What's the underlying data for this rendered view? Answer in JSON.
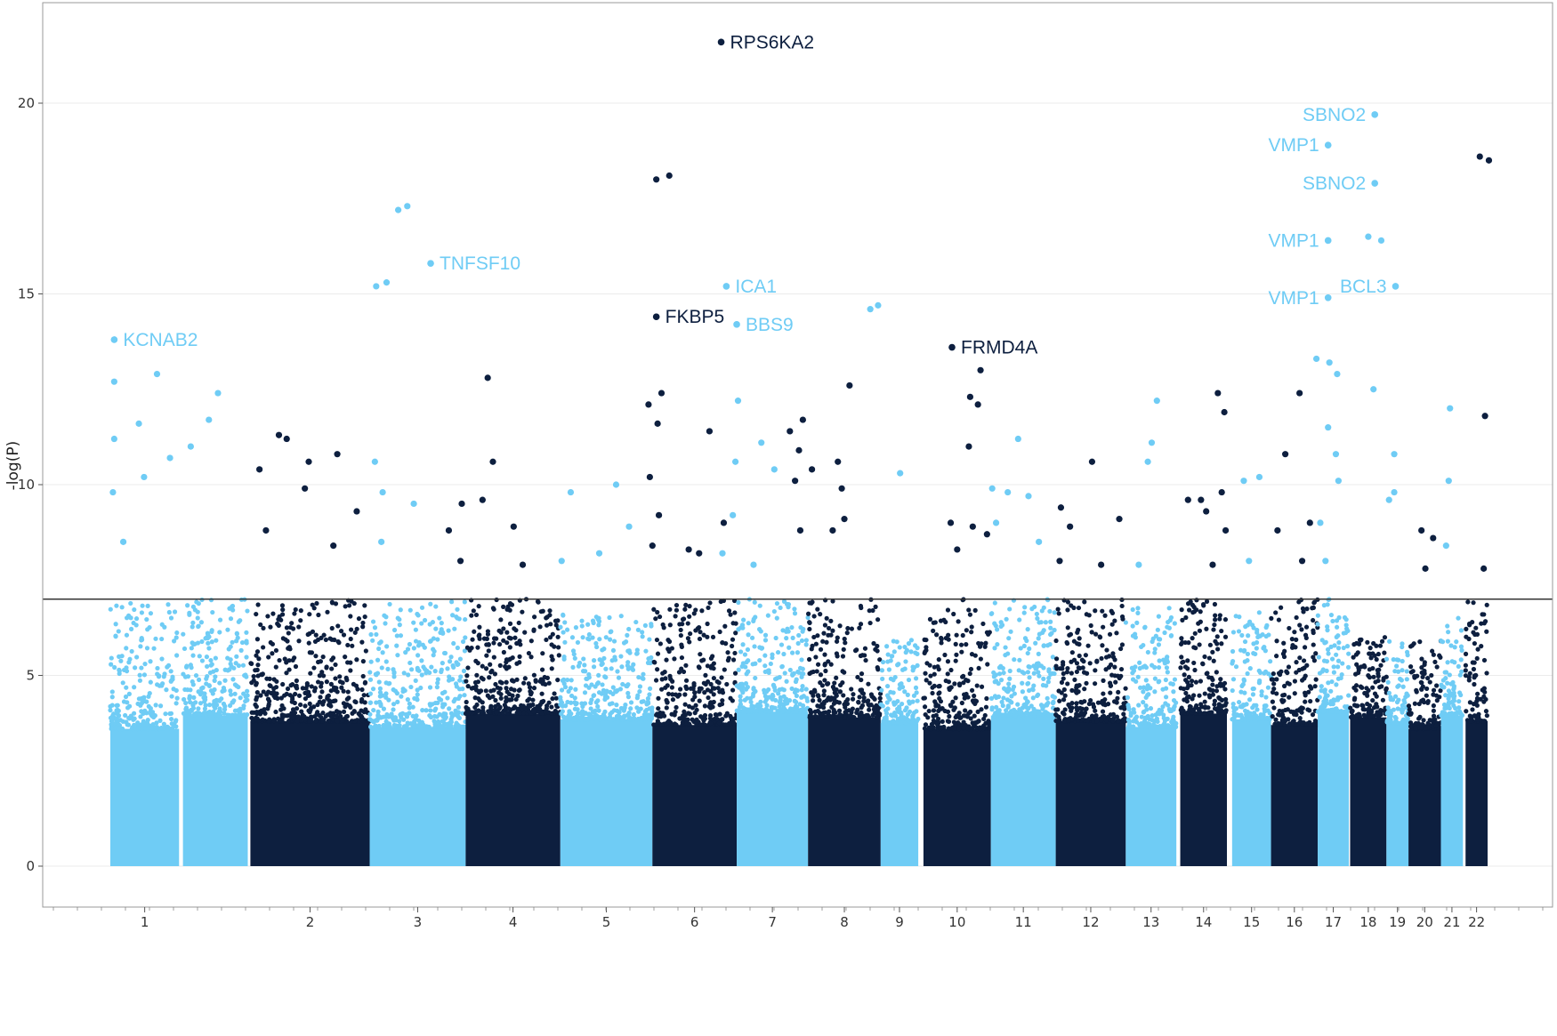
{
  "chart_data": {
    "type": "scatter",
    "subtype": "manhattan",
    "title": "",
    "xlabel": "",
    "ylabel": "-log(P)",
    "ylim": [
      0,
      22
    ],
    "yticks": [
      0,
      5,
      10,
      15,
      20
    ],
    "grid": true,
    "legend": "none",
    "threshold": 7,
    "colors": {
      "light": "#6FCCF5",
      "dark": "#0D1F3F",
      "threshold_line": "#333333",
      "grid": "#EBEBEB",
      "border": "#999999"
    },
    "chromosomes": [
      {
        "chr": "1",
        "label": "1",
        "start": 0,
        "end": 5.3,
        "color": "light",
        "peak": 6.9
      },
      {
        "chr": "1b",
        "label": "",
        "start": 5.6,
        "end": 10.6,
        "color": "light",
        "peak": 7.0
      },
      {
        "chr": "2",
        "label": "2",
        "start": 10.8,
        "end": 20.0,
        "color": "dark",
        "peak": 7.0
      },
      {
        "chr": "3",
        "label": "3",
        "start": 20.0,
        "end": 27.4,
        "color": "light",
        "peak": 7.0
      },
      {
        "chr": "4",
        "label": "4",
        "start": 27.4,
        "end": 34.7,
        "color": "dark",
        "peak": 7.0
      },
      {
        "chr": "5",
        "label": "5",
        "start": 34.7,
        "end": 41.8,
        "color": "light",
        "peak": 6.6
      },
      {
        "chr": "6",
        "label": "6",
        "start": 41.8,
        "end": 48.3,
        "color": "dark",
        "peak": 7.0
      },
      {
        "chr": "7",
        "label": "7",
        "start": 48.3,
        "end": 53.8,
        "color": "light",
        "peak": 7.0
      },
      {
        "chr": "8",
        "label": "8",
        "start": 53.8,
        "end": 59.4,
        "color": "dark",
        "peak": 7.0
      },
      {
        "chr": "9",
        "label": "9",
        "start": 59.4,
        "end": 62.3,
        "color": "light",
        "peak": 6.0
      },
      {
        "chr": "10",
        "label": "10",
        "start": 62.7,
        "end": 67.9,
        "color": "dark",
        "peak": 7.0
      },
      {
        "chr": "11",
        "label": "11",
        "start": 67.9,
        "end": 72.9,
        "color": "light",
        "peak": 7.0
      },
      {
        "chr": "12",
        "label": "12",
        "start": 72.9,
        "end": 78.3,
        "color": "dark",
        "peak": 7.0
      },
      {
        "chr": "13",
        "label": "13",
        "start": 78.3,
        "end": 82.2,
        "color": "light",
        "peak": 6.8
      },
      {
        "chr": "14",
        "label": "14",
        "start": 82.5,
        "end": 86.1,
        "color": "dark",
        "peak": 7.0
      },
      {
        "chr": "15",
        "label": "15",
        "start": 86.5,
        "end": 89.5,
        "color": "light",
        "peak": 6.7
      },
      {
        "chr": "16",
        "label": "16",
        "start": 89.5,
        "end": 93.1,
        "color": "dark",
        "peak": 7.0
      },
      {
        "chr": "17",
        "label": "17",
        "start": 93.1,
        "end": 95.5,
        "color": "light",
        "peak": 7.0
      },
      {
        "chr": "18",
        "label": "18",
        "start": 95.6,
        "end": 98.4,
        "color": "dark",
        "peak": 6.0
      },
      {
        "chr": "19",
        "label": "19",
        "start": 98.4,
        "end": 100.1,
        "color": "light",
        "peak": 6.0
      },
      {
        "chr": "20",
        "label": "20",
        "start": 100.1,
        "end": 102.6,
        "color": "dark",
        "peak": 6.0
      },
      {
        "chr": "21",
        "label": "21",
        "start": 102.6,
        "end": 104.3,
        "color": "light",
        "peak": 6.5
      },
      {
        "chr": "22",
        "label": "22",
        "start": 104.5,
        "end": 106.2,
        "color": "dark",
        "peak": 7.0
      }
    ],
    "chrom_tick_positions": [
      {
        "label": "1",
        "x": 5.0
      },
      {
        "label": "2",
        "x": 13.3
      },
      {
        "label": "3",
        "x": 20.8
      },
      {
        "label": "4",
        "x": 27.4
      },
      {
        "label": "5",
        "x": 33.9
      },
      {
        "label": "6",
        "x": 39.9
      },
      {
        "label": "7",
        "x": 45.5
      },
      {
        "label": "8",
        "x": 50.8
      },
      {
        "label": "9",
        "x": 55.6
      },
      {
        "label": "10",
        "x": 60.5
      },
      {
        "label": "11",
        "x": 65.2
      },
      {
        "label": "12",
        "x": 69.9
      },
      {
        "label": "13",
        "x": 74.3
      },
      {
        "label": "14",
        "x": 78.4
      },
      {
        "label": "15",
        "x": 82.3
      },
      {
        "label": "16",
        "x": 85.7
      },
      {
        "label": "17",
        "x": 88.6
      },
      {
        "label": "18",
        "x": 91.2
      },
      {
        "label": "19",
        "x": 93.4
      },
      {
        "label": "20",
        "x": 95.5
      },
      {
        "label": "21",
        "x": 97.5
      },
      {
        "label": "22",
        "x": 99.3
      }
    ],
    "significant_points": [
      {
        "x": 0.3,
        "y": 13.8,
        "color": "light"
      },
      {
        "x": 0.3,
        "y": 12.7,
        "color": "light"
      },
      {
        "x": 0.3,
        "y": 11.2,
        "color": "light"
      },
      {
        "x": 3.6,
        "y": 12.9,
        "color": "light"
      },
      {
        "x": 4.6,
        "y": 10.7,
        "color": "light"
      },
      {
        "x": 8.3,
        "y": 12.4,
        "color": "light"
      },
      {
        "x": 7.6,
        "y": 11.7,
        "color": "light"
      },
      {
        "x": 6.2,
        "y": 11.0,
        "color": "light"
      },
      {
        "x": 2.2,
        "y": 11.6,
        "color": "light"
      },
      {
        "x": 2.6,
        "y": 10.2,
        "color": "light"
      },
      {
        "x": 0.2,
        "y": 9.8,
        "color": "light"
      },
      {
        "x": 1.0,
        "y": 8.5,
        "color": "light"
      },
      {
        "x": 11.5,
        "y": 10.4,
        "color": "dark"
      },
      {
        "x": 13.0,
        "y": 11.3,
        "color": "dark"
      },
      {
        "x": 13.6,
        "y": 11.2,
        "color": "dark"
      },
      {
        "x": 15.3,
        "y": 10.6,
        "color": "dark"
      },
      {
        "x": 17.5,
        "y": 10.8,
        "color": "dark"
      },
      {
        "x": 15.0,
        "y": 9.9,
        "color": "dark"
      },
      {
        "x": 19.0,
        "y": 9.3,
        "color": "dark"
      },
      {
        "x": 17.2,
        "y": 8.4,
        "color": "dark"
      },
      {
        "x": 12.0,
        "y": 8.8,
        "color": "dark"
      },
      {
        "x": 22.2,
        "y": 17.2,
        "color": "light"
      },
      {
        "x": 22.9,
        "y": 17.3,
        "color": "light"
      },
      {
        "x": 20.5,
        "y": 15.2,
        "color": "light"
      },
      {
        "x": 21.3,
        "y": 15.3,
        "color": "light"
      },
      {
        "x": 24.7,
        "y": 15.8,
        "color": "light"
      },
      {
        "x": 20.4,
        "y": 10.6,
        "color": "light"
      },
      {
        "x": 21.0,
        "y": 9.8,
        "color": "light"
      },
      {
        "x": 23.4,
        "y": 9.5,
        "color": "light"
      },
      {
        "x": 20.9,
        "y": 8.5,
        "color": "light"
      },
      {
        "x": 29.1,
        "y": 12.8,
        "color": "dark"
      },
      {
        "x": 29.5,
        "y": 10.6,
        "color": "dark"
      },
      {
        "x": 28.7,
        "y": 9.6,
        "color": "dark"
      },
      {
        "x": 27.1,
        "y": 9.5,
        "color": "dark"
      },
      {
        "x": 31.1,
        "y": 8.9,
        "color": "dark"
      },
      {
        "x": 27.0,
        "y": 8.0,
        "color": "dark"
      },
      {
        "x": 31.8,
        "y": 7.9,
        "color": "dark"
      },
      {
        "x": 26.1,
        "y": 8.8,
        "color": "dark"
      },
      {
        "x": 35.5,
        "y": 9.8,
        "color": "light"
      },
      {
        "x": 39.0,
        "y": 10.0,
        "color": "light"
      },
      {
        "x": 37.7,
        "y": 8.2,
        "color": "light"
      },
      {
        "x": 34.8,
        "y": 8.0,
        "color": "light"
      },
      {
        "x": 40.0,
        "y": 8.9,
        "color": "light"
      },
      {
        "x": 41.5,
        "y": 12.1,
        "color": "dark"
      },
      {
        "x": 42.5,
        "y": 12.4,
        "color": "dark"
      },
      {
        "x": 42.2,
        "y": 11.6,
        "color": "dark"
      },
      {
        "x": 42.1,
        "y": 18.0,
        "color": "dark"
      },
      {
        "x": 43.1,
        "y": 18.1,
        "color": "dark"
      },
      {
        "x": 42.1,
        "y": 14.4,
        "color": "dark"
      },
      {
        "x": 41.6,
        "y": 10.2,
        "color": "dark"
      },
      {
        "x": 42.3,
        "y": 9.2,
        "color": "dark"
      },
      {
        "x": 46.2,
        "y": 11.4,
        "color": "dark"
      },
      {
        "x": 44.6,
        "y": 8.3,
        "color": "dark"
      },
      {
        "x": 45.4,
        "y": 8.2,
        "color": "dark"
      },
      {
        "x": 47.1,
        "y": 21.6,
        "color": "dark"
      },
      {
        "x": 47.3,
        "y": 9.0,
        "color": "dark"
      },
      {
        "x": 41.8,
        "y": 8.4,
        "color": "dark"
      },
      {
        "x": 47.5,
        "y": 15.2,
        "color": "light"
      },
      {
        "x": 48.3,
        "y": 14.2,
        "color": "light"
      },
      {
        "x": 48.4,
        "y": 12.2,
        "color": "light"
      },
      {
        "x": 50.2,
        "y": 11.1,
        "color": "light"
      },
      {
        "x": 48.2,
        "y": 10.6,
        "color": "light"
      },
      {
        "x": 48.0,
        "y": 9.2,
        "color": "light"
      },
      {
        "x": 51.2,
        "y": 10.4,
        "color": "light"
      },
      {
        "x": 47.2,
        "y": 8.2,
        "color": "light"
      },
      {
        "x": 49.6,
        "y": 7.9,
        "color": "light"
      },
      {
        "x": 53.4,
        "y": 11.7,
        "color": "dark"
      },
      {
        "x": 52.4,
        "y": 11.4,
        "color": "dark"
      },
      {
        "x": 53.1,
        "y": 10.9,
        "color": "dark"
      },
      {
        "x": 52.8,
        "y": 10.1,
        "color": "dark"
      },
      {
        "x": 54.1,
        "y": 10.4,
        "color": "dark"
      },
      {
        "x": 56.1,
        "y": 10.6,
        "color": "dark"
      },
      {
        "x": 56.4,
        "y": 9.9,
        "color": "dark"
      },
      {
        "x": 57.0,
        "y": 12.6,
        "color": "dark"
      },
      {
        "x": 55.7,
        "y": 8.8,
        "color": "dark"
      },
      {
        "x": 53.2,
        "y": 8.8,
        "color": "dark"
      },
      {
        "x": 56.6,
        "y": 9.1,
        "color": "dark"
      },
      {
        "x": 58.6,
        "y": 14.6,
        "color": "light"
      },
      {
        "x": 59.2,
        "y": 14.7,
        "color": "light"
      },
      {
        "x": 60.9,
        "y": 10.3,
        "color": "light"
      },
      {
        "x": 64.9,
        "y": 13.6,
        "color": "dark"
      },
      {
        "x": 67.1,
        "y": 13.0,
        "color": "dark"
      },
      {
        "x": 66.3,
        "y": 12.3,
        "color": "dark"
      },
      {
        "x": 66.9,
        "y": 12.1,
        "color": "dark"
      },
      {
        "x": 66.2,
        "y": 11.0,
        "color": "dark"
      },
      {
        "x": 64.8,
        "y": 9.0,
        "color": "dark"
      },
      {
        "x": 66.5,
        "y": 8.9,
        "color": "dark"
      },
      {
        "x": 67.6,
        "y": 8.7,
        "color": "dark"
      },
      {
        "x": 65.3,
        "y": 8.3,
        "color": "dark"
      },
      {
        "x": 70.0,
        "y": 11.2,
        "color": "light"
      },
      {
        "x": 68.0,
        "y": 9.9,
        "color": "light"
      },
      {
        "x": 69.2,
        "y": 9.8,
        "color": "light"
      },
      {
        "x": 70.8,
        "y": 9.7,
        "color": "light"
      },
      {
        "x": 68.3,
        "y": 9.0,
        "color": "light"
      },
      {
        "x": 71.6,
        "y": 8.5,
        "color": "light"
      },
      {
        "x": 75.7,
        "y": 10.6,
        "color": "dark"
      },
      {
        "x": 73.3,
        "y": 9.4,
        "color": "dark"
      },
      {
        "x": 74.0,
        "y": 8.9,
        "color": "dark"
      },
      {
        "x": 77.8,
        "y": 9.1,
        "color": "dark"
      },
      {
        "x": 73.2,
        "y": 8.0,
        "color": "dark"
      },
      {
        "x": 76.4,
        "y": 7.9,
        "color": "dark"
      },
      {
        "x": 80.7,
        "y": 12.2,
        "color": "light"
      },
      {
        "x": 80.3,
        "y": 11.1,
        "color": "light"
      },
      {
        "x": 80.0,
        "y": 10.6,
        "color": "light"
      },
      {
        "x": 79.3,
        "y": 7.9,
        "color": "light"
      },
      {
        "x": 85.4,
        "y": 12.4,
        "color": "dark"
      },
      {
        "x": 85.9,
        "y": 11.9,
        "color": "dark"
      },
      {
        "x": 83.1,
        "y": 9.6,
        "color": "dark"
      },
      {
        "x": 84.1,
        "y": 9.6,
        "color": "dark"
      },
      {
        "x": 85.7,
        "y": 9.8,
        "color": "dark"
      },
      {
        "x": 84.5,
        "y": 9.3,
        "color": "dark"
      },
      {
        "x": 86.0,
        "y": 8.8,
        "color": "dark"
      },
      {
        "x": 85.0,
        "y": 7.9,
        "color": "dark"
      },
      {
        "x": 87.4,
        "y": 10.1,
        "color": "light"
      },
      {
        "x": 88.6,
        "y": 10.2,
        "color": "light"
      },
      {
        "x": 87.8,
        "y": 8.0,
        "color": "light"
      },
      {
        "x": 91.7,
        "y": 12.4,
        "color": "dark"
      },
      {
        "x": 90.6,
        "y": 10.8,
        "color": "dark"
      },
      {
        "x": 90.0,
        "y": 8.8,
        "color": "dark"
      },
      {
        "x": 92.5,
        "y": 9.0,
        "color": "dark"
      },
      {
        "x": 91.9,
        "y": 8.0,
        "color": "dark"
      },
      {
        "x": 93.9,
        "y": 18.9,
        "color": "light"
      },
      {
        "x": 93.9,
        "y": 16.4,
        "color": "light"
      },
      {
        "x": 93.9,
        "y": 14.9,
        "color": "light"
      },
      {
        "x": 93.0,
        "y": 13.3,
        "color": "light"
      },
      {
        "x": 94.0,
        "y": 13.2,
        "color": "light"
      },
      {
        "x": 94.6,
        "y": 12.9,
        "color": "light"
      },
      {
        "x": 93.9,
        "y": 11.5,
        "color": "light"
      },
      {
        "x": 94.5,
        "y": 10.8,
        "color": "light"
      },
      {
        "x": 94.7,
        "y": 10.1,
        "color": "light"
      },
      {
        "x": 93.3,
        "y": 9.0,
        "color": "light"
      },
      {
        "x": 93.7,
        "y": 8.0,
        "color": "light"
      },
      {
        "x": 97.5,
        "y": 19.7,
        "color": "light"
      },
      {
        "x": 97.5,
        "y": 17.9,
        "color": "light"
      },
      {
        "x": 97.0,
        "y": 16.5,
        "color": "light"
      },
      {
        "x": 98.0,
        "y": 16.4,
        "color": "light"
      },
      {
        "x": 99.1,
        "y": 15.2,
        "color": "light"
      },
      {
        "x": 97.4,
        "y": 12.5,
        "color": "light"
      },
      {
        "x": 99.0,
        "y": 10.8,
        "color": "light"
      },
      {
        "x": 99.0,
        "y": 9.8,
        "color": "light"
      },
      {
        "x": 98.6,
        "y": 9.6,
        "color": "light"
      },
      {
        "x": 101.1,
        "y": 8.8,
        "color": "dark"
      },
      {
        "x": 102.0,
        "y": 8.6,
        "color": "dark"
      },
      {
        "x": 101.4,
        "y": 7.8,
        "color": "dark"
      },
      {
        "x": 103.3,
        "y": 12.0,
        "color": "light"
      },
      {
        "x": 103.2,
        "y": 10.1,
        "color": "light"
      },
      {
        "x": 103.0,
        "y": 8.4,
        "color": "light"
      },
      {
        "x": 105.6,
        "y": 18.6,
        "color": "dark"
      },
      {
        "x": 106.3,
        "y": 18.5,
        "color": "dark"
      },
      {
        "x": 106.0,
        "y": 11.8,
        "color": "dark"
      },
      {
        "x": 105.9,
        "y": 7.8,
        "color": "dark"
      }
    ],
    "annotations": [
      {
        "text": "KCNAB2",
        "x": 0.3,
        "y": 13.8,
        "color": "light"
      },
      {
        "text": "TNFSF10",
        "x": 24.7,
        "y": 15.8,
        "color": "light"
      },
      {
        "text": "RPS6KA2",
        "x": 47.1,
        "y": 21.6,
        "color": "dark"
      },
      {
        "text": "ICA1",
        "x": 47.5,
        "y": 15.2,
        "color": "light"
      },
      {
        "text": "FKBP5",
        "x": 42.1,
        "y": 14.4,
        "color": "dark"
      },
      {
        "text": "BBS9",
        "x": 48.3,
        "y": 14.2,
        "color": "light"
      },
      {
        "text": "FRMD4A",
        "x": 64.9,
        "y": 13.6,
        "color": "dark"
      },
      {
        "text": "SBNO2",
        "x": 97.5,
        "y": 19.7,
        "color": "light",
        "align": "left"
      },
      {
        "text": "VMP1",
        "x": 93.9,
        "y": 18.9,
        "color": "light",
        "align": "left"
      },
      {
        "text": "SBNO2",
        "x": 97.5,
        "y": 17.9,
        "color": "light",
        "align": "left"
      },
      {
        "text": "VMP1",
        "x": 93.9,
        "y": 16.4,
        "color": "light",
        "align": "left"
      },
      {
        "text": "BCL3",
        "x": 99.1,
        "y": 15.2,
        "color": "light",
        "align": "left"
      },
      {
        "text": "VMP1",
        "x": 93.9,
        "y": 14.9,
        "color": "light",
        "align": "left"
      }
    ]
  }
}
